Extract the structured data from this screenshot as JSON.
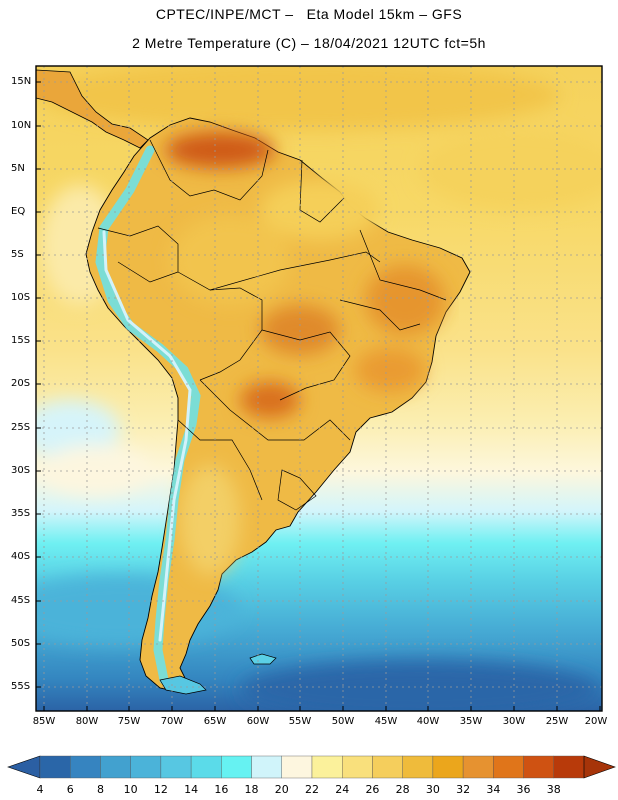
{
  "title": {
    "line1": "CPTEC/INPE/MCT –   Eta Model 15km – GFS",
    "line2": "2 Metre Temperature (C) – 18/04/2021 12UTC fct=5h"
  },
  "map": {
    "region": "South America",
    "lat_labels": [
      "15N",
      "10N",
      "5N",
      "EQ",
      "5S",
      "10S",
      "15S",
      "20S",
      "25S",
      "30S",
      "35S",
      "40S",
      "45S",
      "50S",
      "55S"
    ],
    "lon_labels": [
      "85W",
      "80W",
      "75W",
      "70W",
      "65W",
      "60W",
      "55W",
      "50W",
      "45W",
      "40W",
      "35W",
      "30W",
      "25W",
      "20W"
    ],
    "grid": "dotted"
  },
  "colorbar": {
    "values": [
      "4",
      "6",
      "8",
      "10",
      "12",
      "14",
      "16",
      "18",
      "20",
      "22",
      "24",
      "26",
      "28",
      "30",
      "32",
      "34",
      "36",
      "38"
    ],
    "colors": [
      "#2a66a8",
      "#3684c0",
      "#42a1cf",
      "#4bb3d9",
      "#57c7e2",
      "#5bdbe9",
      "#66f2f2",
      "#d0f4fa",
      "#fdf6df",
      "#fbf19b",
      "#f9e07c",
      "#f5ce5c",
      "#efbb3b",
      "#eba61c",
      "#e69230",
      "#e0751a",
      "#cf5212",
      "#b83a0a"
    ],
    "low_cap_color": "#2b5fa3",
    "high_cap_color": "#a63409"
  }
}
